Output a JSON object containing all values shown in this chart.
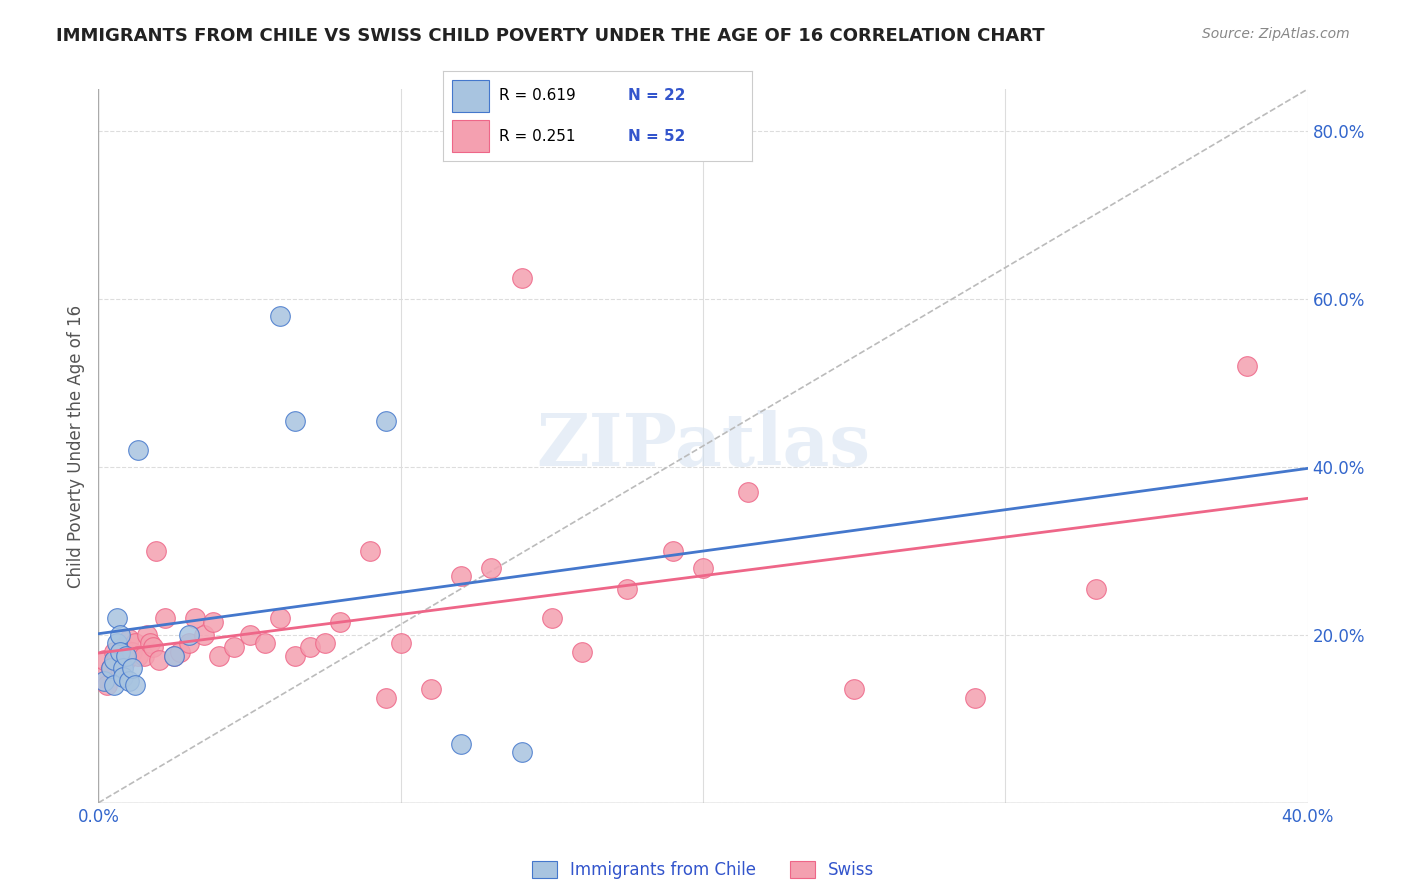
{
  "title": "IMMIGRANTS FROM CHILE VS SWISS CHILD POVERTY UNDER THE AGE OF 16 CORRELATION CHART",
  "source": "Source: ZipAtlas.com",
  "xlabel": "",
  "ylabel": "Child Poverty Under the Age of 16",
  "xlim": [
    0.0,
    0.4
  ],
  "ylim": [
    0.0,
    0.85
  ],
  "xticks": [
    0.0,
    0.05,
    0.1,
    0.15,
    0.2,
    0.25,
    0.3,
    0.35,
    0.4
  ],
  "xticklabels": [
    "0.0%",
    "",
    "",
    "",
    "",
    "",
    "",
    "",
    "40.0%"
  ],
  "yticks_right": [
    0.0,
    0.2,
    0.4,
    0.6,
    0.8
  ],
  "yticklabels_right": [
    "",
    "20.0%",
    "40.0%",
    "60.0%",
    "80.0%"
  ],
  "watermark": "ZIPatlas",
  "legend_labels": [
    "Immigrants from Chile",
    "Swiss"
  ],
  "chile_R": "0.619",
  "chile_N": "22",
  "swiss_R": "0.251",
  "swiss_N": "52",
  "chile_color": "#a8c4e0",
  "swiss_color": "#f4a0b0",
  "chile_line_color": "#4477cc",
  "swiss_line_color": "#ee6688",
  "dashed_line_color": "#bbbbbb",
  "background_color": "#ffffff",
  "grid_color": "#dddddd",
  "title_color": "#222222",
  "source_color": "#888888",
  "legend_text_color": "#3355cc",
  "chile_scatter_x": [
    0.002,
    0.004,
    0.005,
    0.005,
    0.006,
    0.006,
    0.007,
    0.007,
    0.008,
    0.008,
    0.009,
    0.01,
    0.011,
    0.012,
    0.013,
    0.025,
    0.03,
    0.06,
    0.065,
    0.095,
    0.12,
    0.14
  ],
  "chile_scatter_y": [
    0.145,
    0.16,
    0.14,
    0.17,
    0.19,
    0.22,
    0.2,
    0.18,
    0.16,
    0.15,
    0.175,
    0.145,
    0.16,
    0.14,
    0.42,
    0.175,
    0.2,
    0.58,
    0.455,
    0.455,
    0.07,
    0.06
  ],
  "swiss_scatter_x": [
    0.001,
    0.002,
    0.003,
    0.004,
    0.005,
    0.006,
    0.007,
    0.008,
    0.009,
    0.01,
    0.011,
    0.012,
    0.013,
    0.015,
    0.016,
    0.017,
    0.018,
    0.019,
    0.02,
    0.022,
    0.025,
    0.027,
    0.03,
    0.032,
    0.035,
    0.038,
    0.04,
    0.045,
    0.05,
    0.055,
    0.06,
    0.065,
    0.07,
    0.075,
    0.08,
    0.09,
    0.095,
    0.1,
    0.11,
    0.12,
    0.13,
    0.14,
    0.15,
    0.16,
    0.175,
    0.19,
    0.2,
    0.215,
    0.25,
    0.29,
    0.33,
    0.38
  ],
  "swiss_scatter_y": [
    0.15,
    0.17,
    0.14,
    0.16,
    0.18,
    0.175,
    0.16,
    0.185,
    0.17,
    0.195,
    0.18,
    0.19,
    0.175,
    0.175,
    0.2,
    0.19,
    0.185,
    0.3,
    0.17,
    0.22,
    0.175,
    0.18,
    0.19,
    0.22,
    0.2,
    0.215,
    0.175,
    0.185,
    0.2,
    0.19,
    0.22,
    0.175,
    0.185,
    0.19,
    0.215,
    0.3,
    0.125,
    0.19,
    0.135,
    0.27,
    0.28,
    0.625,
    0.22,
    0.18,
    0.255,
    0.3,
    0.28,
    0.37,
    0.135,
    0.125,
    0.255,
    0.52
  ]
}
